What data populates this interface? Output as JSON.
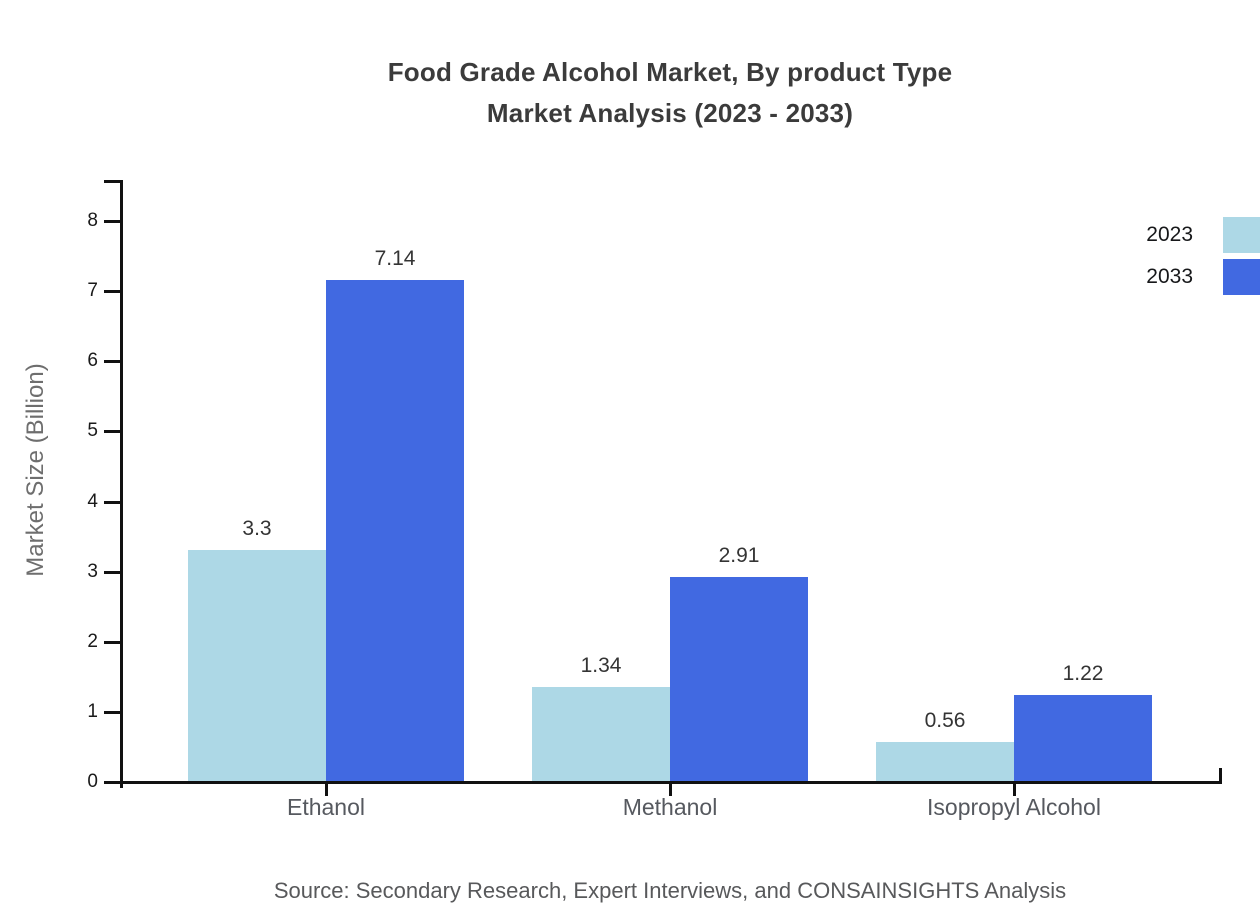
{
  "chart_data": {
    "type": "bar",
    "title_line1": "Food Grade Alcohol Market, By product Type",
    "title_line2": "Market Analysis (2023 - 2033)",
    "ylabel": "Market Size (Billion)",
    "xlabel": "",
    "categories": [
      "Ethanol",
      "Methanol",
      "Isopropyl Alcohol"
    ],
    "series": [
      {
        "name": "2023",
        "color": "#ADD8E6",
        "values": [
          3.3,
          1.34,
          0.56
        ],
        "labels": [
          "3.3",
          "1.34",
          "0.56"
        ]
      },
      {
        "name": "2033",
        "color": "#4169E1",
        "values": [
          7.14,
          2.91,
          1.22
        ],
        "labels": [
          "7.14",
          "2.91",
          "1.22"
        ]
      }
    ],
    "ylim": [
      0,
      8
    ],
    "yticks": [
      0,
      1,
      2,
      3,
      4,
      5,
      6,
      7,
      8
    ],
    "grid": false,
    "legend_position": "top-right"
  },
  "source_note": "Source: Secondary Research, Expert Interviews, and CONSAINSIGHTS Analysis"
}
